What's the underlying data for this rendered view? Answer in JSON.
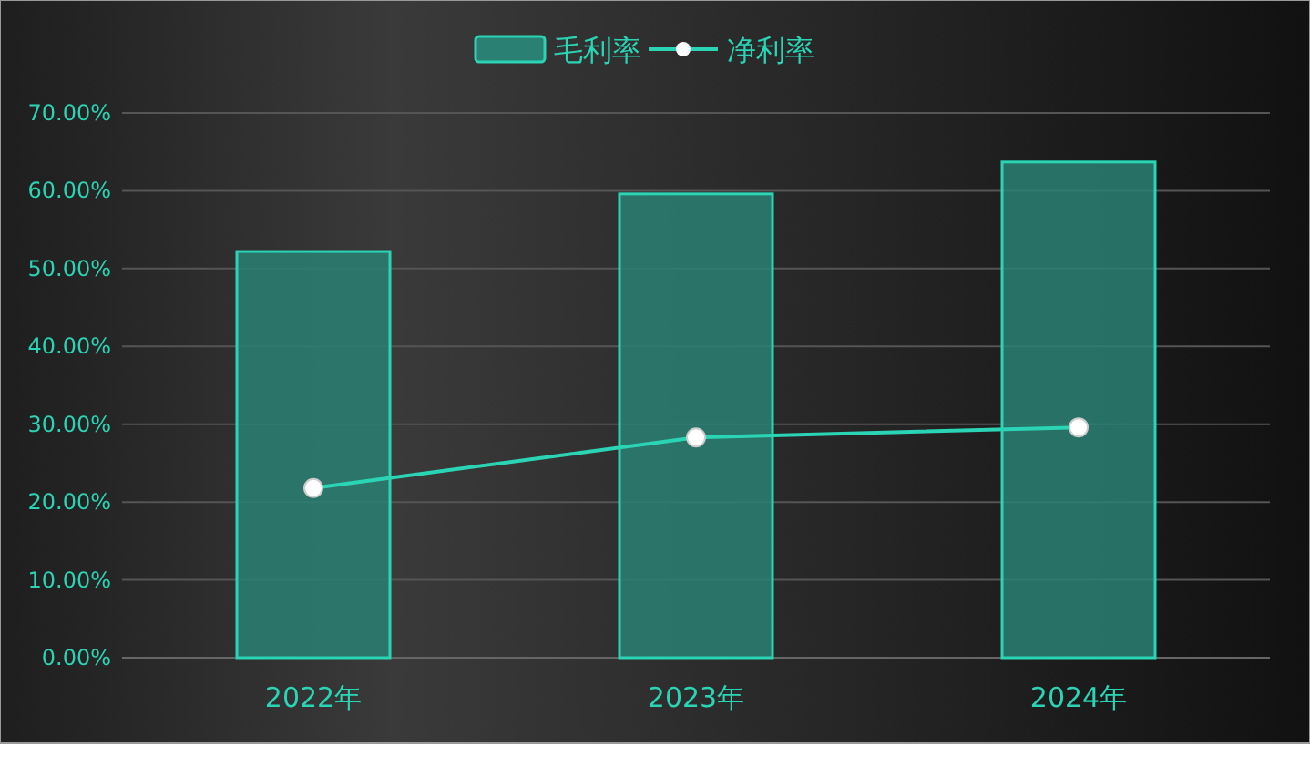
{
  "chart_data": {
    "type": "bar",
    "categories": [
      "2022年",
      "2023年",
      "2024年"
    ],
    "series": [
      {
        "name": "毛利率",
        "color": "#2a8073",
        "values": [
          52.2,
          59.6,
          63.7
        ]
      },
      {
        "name": "净利率",
        "type": "line",
        "color": "#2ad4b4",
        "marker": "circle",
        "values": [
          21.8,
          28.3,
          29.6
        ]
      }
    ],
    "ylim": [
      0,
      70
    ],
    "yticks": [
      {
        "value": 0,
        "label": "0.00%"
      },
      {
        "value": 10,
        "label": "10.00%"
      },
      {
        "value": 20,
        "label": "20.00%"
      },
      {
        "value": 30,
        "label": "30.00%"
      },
      {
        "value": 40,
        "label": "40.00%"
      },
      {
        "value": 50,
        "label": "50.00%"
      },
      {
        "value": 60,
        "label": "60.00%"
      },
      {
        "value": 70,
        "label": "70.00%"
      }
    ],
    "grid": "y",
    "legend": "top"
  }
}
